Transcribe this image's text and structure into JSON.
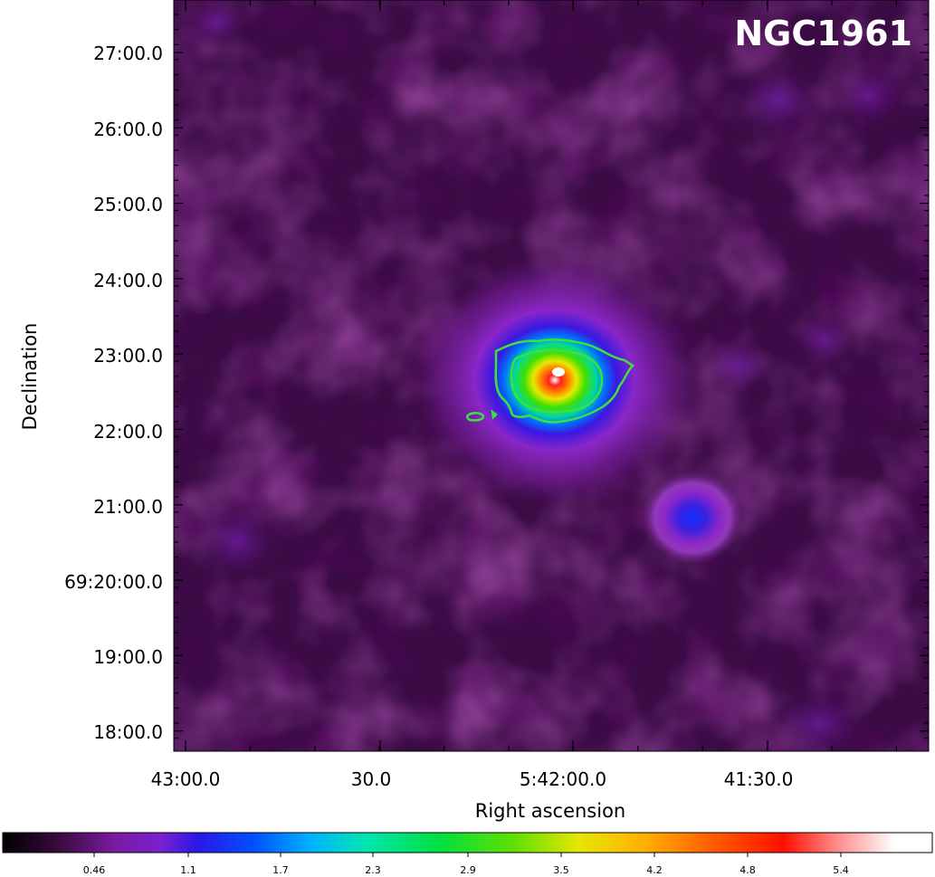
{
  "image": {
    "object_name": "NGC1961",
    "x_axis_label": "Right ascension",
    "y_axis_label": "Declination",
    "ra_tick_labels": [
      "43:00.0",
      "30.0",
      "5:42:00.0",
      "41:30.0"
    ],
    "dec_tick_labels": [
      "27:00.0",
      "26:00.0",
      "25:00.0",
      "24:00.0",
      "23:00.0",
      "22:00.0",
      "21:00.0",
      "69:20:00.0",
      "19:00.0",
      "18:00.0"
    ],
    "colorbar_labels": [
      "0.46",
      "1.1",
      "1.7",
      "2.3",
      "2.9",
      "3.5",
      "4.2",
      "4.8",
      "5.4"
    ],
    "colormap": [
      "#000000",
      "#3a0a3e",
      "#7a1aa0",
      "#8a26c8",
      "#2a18e6",
      "#0050ff",
      "#00b0ff",
      "#00e6b0",
      "#00e040",
      "#30e000",
      "#a0e600",
      "#e6e600",
      "#ffb000",
      "#ff6000",
      "#ff1000",
      "#ff9090",
      "#ffffff"
    ],
    "contour_color": "#3ee03e",
    "background_color": "#3a0b44"
  }
}
